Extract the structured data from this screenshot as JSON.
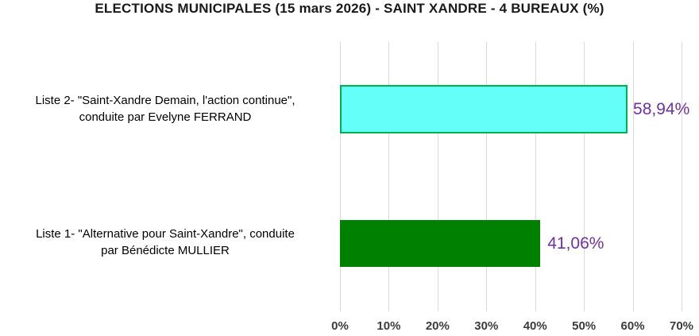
{
  "chart_data": {
    "type": "bar",
    "orientation": "horizontal",
    "title": "ELECTIONS MUNICIPALES (15 mars 2026) - SAINT XANDRE - 4 BUREAUX (%)",
    "xlim": [
      0,
      70
    ],
    "x_ticks": [
      "0%",
      "10%",
      "20%",
      "30%",
      "40%",
      "50%",
      "60%",
      "70%"
    ],
    "grid": true,
    "legend": false,
    "gridline_color": "#d9d9d9",
    "value_label_color": "#7030a0",
    "bars": [
      {
        "category": "Liste 2- \"Saint-Xandre Demain, l'action continue\", conduite par Evelyne FERRAND",
        "label_line1": "Liste 2- \"Saint-Xandre Demain, l'action continue\",",
        "label_line2": "conduite par Evelyne FERRAND",
        "value": 58.94,
        "value_label": "58,94%",
        "fill": "#63fff8",
        "border": "#00b050"
      },
      {
        "category": "Liste 1- \"Alternative pour Saint-Xandre\", conduite par Bénédicte MULLIER",
        "label_line1": "Liste 1-  \"Alternative pour Saint-Xandre\", conduite",
        "label_line2": "par Bénédicte MULLIER",
        "value": 41.06,
        "value_label": "41,06%",
        "fill": "#008000",
        "border": "#008000"
      }
    ]
  }
}
